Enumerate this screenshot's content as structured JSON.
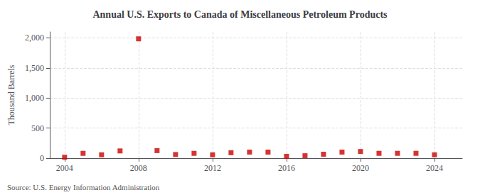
{
  "chart_data": {
    "type": "scatter",
    "title": "Annual U.S. Exports to Canada of Miscellaneous Petroleum Products",
    "ylabel": "Thousand Barrels",
    "source": "Source: U.S. Energy Information Administration",
    "x": [
      2004,
      2005,
      2006,
      2007,
      2008,
      2009,
      2010,
      2011,
      2012,
      2013,
      2014,
      2015,
      2016,
      2017,
      2018,
      2019,
      2020,
      2021,
      2022,
      2023,
      2024
    ],
    "values": [
      15,
      80,
      55,
      120,
      1985,
      125,
      60,
      80,
      55,
      90,
      100,
      100,
      30,
      40,
      65,
      100,
      110,
      80,
      80,
      80,
      55
    ],
    "color": "#cc0000",
    "marker": "square",
    "xlim": [
      2003.2,
      2025.5
    ],
    "xticks": [
      2004,
      2008,
      2012,
      2016,
      2020,
      2024
    ],
    "ylim": [
      0,
      2100
    ],
    "yticks": [
      0,
      500,
      {
        "value": 1000,
        "label": "1,000"
      },
      {
        "value": 1500,
        "label": "1,500"
      },
      {
        "value": 2000,
        "label": "2,000"
      }
    ],
    "grid": true
  }
}
